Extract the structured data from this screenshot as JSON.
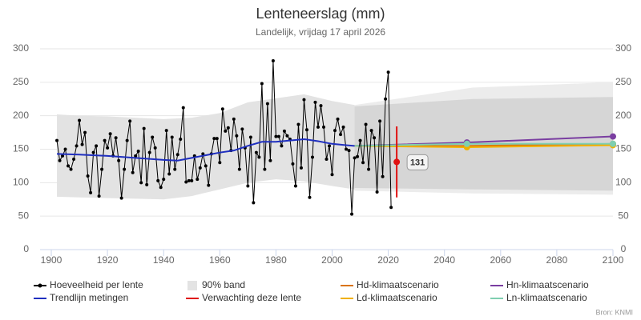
{
  "chart_data": {
    "type": "line",
    "title": "Lenteneerslag (mm)",
    "subtitle": "Landelijk, vrijdag 17 april 2026",
    "source": "Bron: KNMI",
    "xlim": [
      1896,
      2100
    ],
    "xticks": [
      1900,
      1920,
      1940,
      1960,
      1980,
      2000,
      2020,
      2040,
      2060,
      2080,
      2100
    ],
    "ylim": [
      0,
      300
    ],
    "yticks": [
      0,
      50,
      100,
      150,
      200,
      250,
      300
    ],
    "y2lim": [
      0,
      300
    ],
    "y2ticks": [
      0,
      50,
      100,
      150,
      200,
      250,
      300
    ],
    "grid": true,
    "bands": [
      {
        "name": "90% band",
        "color": "#e3e3e3",
        "x": [
          1902,
          1910,
          1920,
          1930,
          1940,
          1950,
          1960,
          1970,
          1980,
          1990,
          2000,
          2008
        ],
        "upper": [
          202,
          200,
          199,
          197,
          195,
          197,
          204,
          220,
          226,
          232,
          222,
          216
        ],
        "lower": [
          79,
          78,
          77,
          76,
          75,
          80,
          90,
          100,
          105,
          102,
          95,
          90
        ]
      },
      {
        "color": "#ececec",
        "x": [
          2008,
          2050,
          2100
        ],
        "upper": [
          216,
          242,
          250
        ],
        "lower": [
          88,
          84,
          82
        ]
      },
      {
        "color": "#d6d6d6",
        "x": [
          2008,
          2050,
          2100
        ],
        "upper": [
          214,
          225,
          228
        ],
        "lower": [
          92,
          90,
          88
        ]
      }
    ],
    "series": [
      {
        "name": "Hoeveelheid per lente",
        "color": "#000000",
        "x": [
          1902,
          1903,
          1904,
          1905,
          1906,
          1907,
          1908,
          1909,
          1910,
          1911,
          1912,
          1913,
          1914,
          1915,
          1916,
          1917,
          1918,
          1919,
          1920,
          1921,
          1922,
          1923,
          1924,
          1925,
          1926,
          1927,
          1928,
          1929,
          1930,
          1931,
          1932,
          1933,
          1934,
          1935,
          1936,
          1937,
          1938,
          1939,
          1940,
          1941,
          1942,
          1943,
          1944,
          1945,
          1946,
          1947,
          1948,
          1949,
          1950,
          1951,
          1952,
          1953,
          1954,
          1955,
          1956,
          1957,
          1958,
          1959,
          1960,
          1961,
          1962,
          1963,
          1964,
          1965,
          1966,
          1967,
          1968,
          1969,
          1970,
          1971,
          1972,
          1973,
          1974,
          1975,
          1976,
          1977,
          1978,
          1979,
          1980,
          1981,
          1982,
          1983,
          1984,
          1985,
          1986,
          1987,
          1988,
          1989,
          1990,
          1991,
          1992,
          1993,
          1994,
          1995,
          1996,
          1997,
          1998,
          1999,
          2000,
          2001,
          2002,
          2003,
          2004,
          2005,
          2006,
          2007,
          2008,
          2009,
          2010,
          2011,
          2012,
          2013,
          2014,
          2015,
          2016,
          2017,
          2018,
          2019,
          2020,
          2021
        ],
        "values": [
          163,
          133,
          140,
          150,
          125,
          120,
          135,
          155,
          193,
          157,
          175,
          110,
          85,
          145,
          155,
          80,
          120,
          163,
          152,
          173,
          140,
          167,
          133,
          77,
          120,
          163,
          192,
          115,
          140,
          147,
          100,
          181,
          97,
          145,
          168,
          152,
          103,
          93,
          105,
          178,
          113,
          168,
          120,
          142,
          165,
          212,
          101,
          103,
          103,
          140,
          105,
          122,
          143,
          125,
          96,
          143,
          166,
          166,
          130,
          210,
          177,
          182,
          148,
          195,
          170,
          120,
          180,
          152,
          95,
          168,
          70,
          145,
          138,
          248,
          120,
          218,
          133,
          282,
          169,
          169,
          155,
          177,
          170,
          165,
          128,
          95,
          187,
          122,
          224,
          179,
          78,
          138,
          220,
          183,
          215,
          183,
          135,
          155,
          112,
          178,
          195,
          172,
          183,
          150,
          148,
          53,
          137,
          139,
          163,
          130,
          187,
          120,
          178,
          167,
          86,
          192,
          109,
          225,
          265,
          63
        ]
      },
      {
        "name": "Trendlijn metingen",
        "color": "#1f2fbf",
        "x": [
          1902,
          1910,
          1920,
          1930,
          1940,
          1945,
          1950,
          1960,
          1965,
          1970,
          1975,
          1980,
          1985,
          1990,
          1995,
          2000,
          2005,
          2008
        ],
        "values": [
          143,
          142,
          140,
          137,
          134,
          133,
          137,
          145,
          148,
          155,
          161,
          161,
          163,
          165,
          162,
          158,
          156,
          155
        ]
      }
    ],
    "forecast": {
      "name": "Verwachting deze lente",
      "color": "#e01010",
      "x": 2023,
      "value": 131,
      "low": 78,
      "high": 184
    },
    "scenarios": [
      {
        "name": "Hd-klimaatscenario",
        "color": "#d9730d",
        "x": [
          2008,
          2048,
          2100
        ],
        "values": [
          155,
          155,
          158
        ]
      },
      {
        "name": "Hn-klimaatscenario",
        "color": "#7a3ea1",
        "x": [
          2008,
          2048,
          2100
        ],
        "values": [
          155,
          160,
          169
        ]
      },
      {
        "name": "Ld-klimaatscenario",
        "color": "#f0b000",
        "x": [
          2008,
          2048,
          2100
        ],
        "values": [
          155,
          153,
          156
        ]
      },
      {
        "name": "Ln-klimaatscenario",
        "color": "#7fcfb0",
        "x": [
          2008,
          2048,
          2100
        ],
        "values": [
          155,
          158,
          158
        ]
      }
    ]
  }
}
